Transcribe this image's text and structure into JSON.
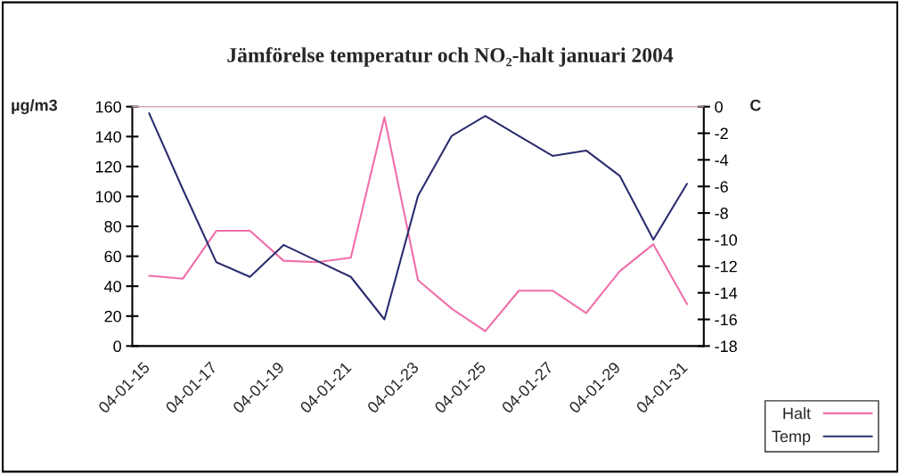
{
  "chart_data": {
    "type": "line",
    "title": "Jämförelse temperatur och NO₂-halt januari 2004",
    "ylabel": "µg/m3",
    "y2label": "C",
    "categories": [
      "04-01-15",
      null,
      "04-01-17",
      null,
      "04-01-19",
      null,
      "04-01-21",
      null,
      "04-01-23",
      null,
      "04-01-25",
      null,
      "04-01-27",
      null,
      "04-01-29",
      null,
      "04-01-31"
    ],
    "series": [
      {
        "name": "Halt",
        "color": "#f06eaa",
        "values": [
          47,
          45,
          77,
          77,
          57,
          56,
          59,
          153,
          44,
          25,
          10,
          37,
          37,
          22,
          50,
          68,
          28
        ]
      },
      {
        "name": "Temp",
        "color": "#2b2d6e",
        "axis": "y2",
        "values": [
          -0.5,
          -6.2,
          -11.7,
          -12.8,
          -10.4,
          -11.6,
          -12.8,
          -16.0,
          -6.7,
          -2.2,
          -0.7,
          -2.2,
          -3.7,
          -3.3,
          -5.2,
          -10.0,
          -5.8
        ]
      }
    ],
    "ylim": [
      0,
      160
    ],
    "yticks": [
      0,
      20,
      40,
      60,
      80,
      100,
      120,
      140,
      160
    ],
    "y2lim": [
      -18,
      0
    ],
    "y2ticks": [
      -18,
      -16,
      -14,
      -12,
      -10,
      -8,
      -6,
      -4,
      -2,
      0
    ],
    "grid": false,
    "legend": "bottom right",
    "marker": "none",
    "line_style": "solid"
  }
}
